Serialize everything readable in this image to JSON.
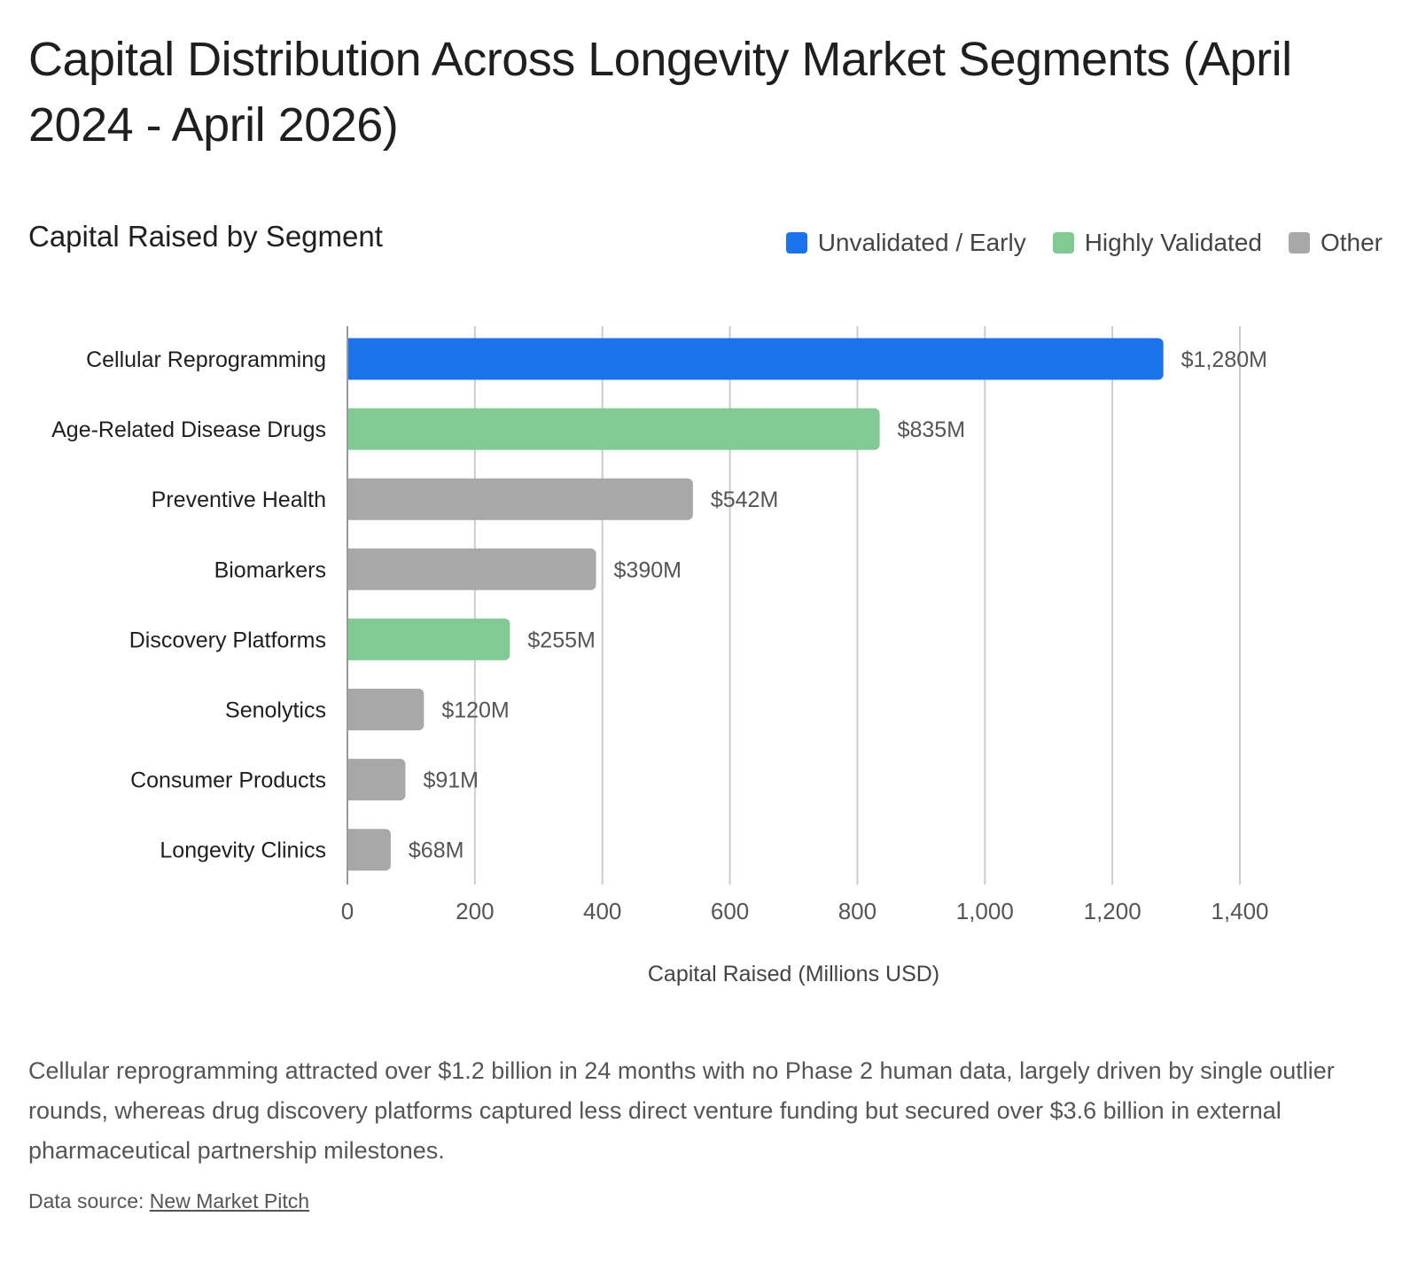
{
  "title": "Capital Distribution Across Longevity Market Segments (April 2024 - April 2026)",
  "subtitle": "Capital Raised by Segment",
  "legend": [
    {
      "label": "Unvalidated / Early",
      "color": "#1a73e8"
    },
    {
      "label": "Highly Validated",
      "color": "#81c995"
    },
    {
      "label": "Other",
      "color": "#a8a8a8"
    }
  ],
  "chart_data": {
    "type": "bar",
    "orientation": "horizontal",
    "categories": [
      "Cellular Reprogramming",
      "Age-Related Disease Drugs",
      "Preventive Health",
      "Biomarkers",
      "Discovery Platforms",
      "Senolytics",
      "Consumer Products",
      "Longevity Clinics"
    ],
    "values": [
      1280,
      835,
      542,
      390,
      255,
      120,
      91,
      68
    ],
    "value_labels": [
      "$1,280M",
      "$835M",
      "$542M",
      "$390M",
      "$255M",
      "$120M",
      "$91M",
      "$68M"
    ],
    "groups": [
      "Unvalidated / Early",
      "Highly Validated",
      "Other",
      "Other",
      "Highly Validated",
      "Other",
      "Other",
      "Other"
    ],
    "xlabel": "Capital Raised (Millions USD)",
    "ylabel": "",
    "xlim": [
      0,
      1400
    ],
    "xticks": [
      0,
      200,
      400,
      600,
      800,
      1000,
      1200,
      1400
    ],
    "xtick_labels": [
      "0",
      "200",
      "400",
      "600",
      "800",
      "1,000",
      "1,200",
      "1,400"
    ],
    "grid": true,
    "legend_position": "top-right"
  },
  "description": "Cellular reprogramming attracted over $1.2 billion in 24 months with no Phase 2 human data, largely driven by single outlier rounds, whereas drug discovery platforms captured less direct venture funding but secured over $3.6 billion in external pharmaceutical partnership milestones.",
  "source": {
    "prefix": "Data source: ",
    "link_text": "New Market Pitch"
  }
}
